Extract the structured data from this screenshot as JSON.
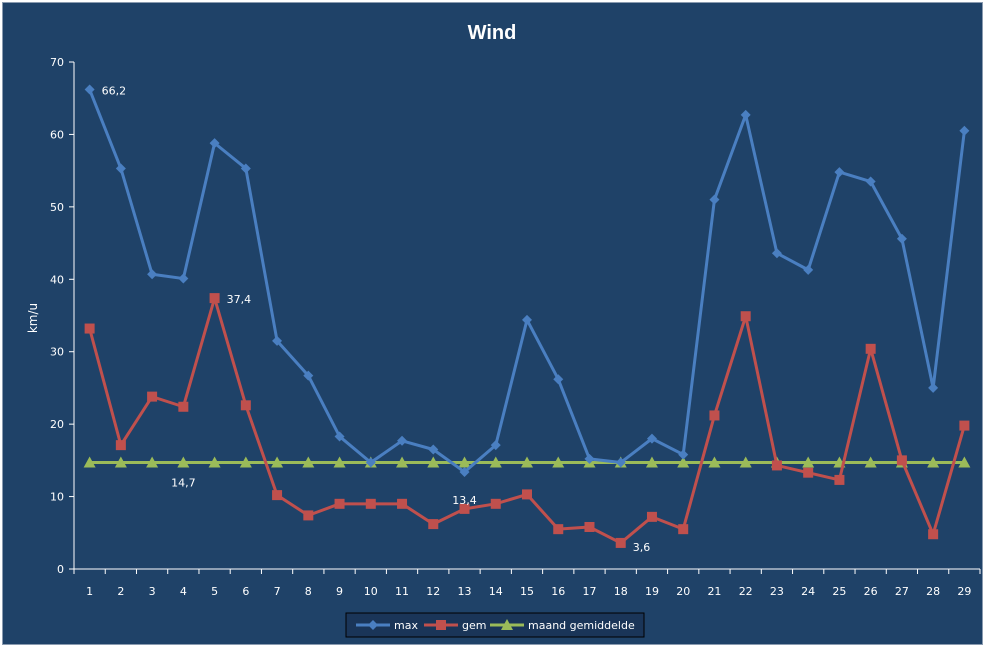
{
  "chart_data": {
    "type": "line",
    "title": "Wind",
    "xlabel": "",
    "ylabel": "km/u",
    "ylim": [
      0,
      70
    ],
    "yticks": [
      0,
      10,
      20,
      30,
      40,
      50,
      60,
      70
    ],
    "grid": false,
    "legend_position": "bottom",
    "x": [
      1,
      2,
      3,
      4,
      5,
      6,
      7,
      8,
      9,
      10,
      11,
      12,
      13,
      14,
      15,
      16,
      17,
      18,
      19,
      20,
      21,
      22,
      23,
      24,
      25,
      26,
      27,
      28,
      29
    ],
    "series": [
      {
        "name": "max",
        "color": "#4a7fc1",
        "marker": "diamond",
        "values": [
          66.2,
          55.3,
          40.7,
          40.1,
          58.8,
          55.3,
          31.5,
          26.7,
          18.3,
          14.7,
          17.7,
          16.5,
          13.4,
          17.1,
          34.4,
          26.2,
          15.2,
          14.7,
          18.0,
          15.8,
          51.0,
          62.7,
          43.6,
          41.3,
          54.8,
          53.5,
          45.6,
          25.0,
          60.5
        ]
      },
      {
        "name": "gem",
        "color": "#c0504d",
        "marker": "square",
        "values": [
          33.2,
          17.1,
          23.8,
          22.4,
          37.4,
          22.6,
          10.2,
          7.4,
          9.0,
          9.0,
          9.0,
          6.2,
          8.3,
          9.0,
          10.3,
          5.5,
          5.8,
          3.6,
          7.2,
          5.5,
          21.2,
          34.9,
          14.3,
          13.3,
          12.3,
          30.4,
          15.0,
          4.8,
          19.8
        ]
      },
      {
        "name": "maand gemiddelde",
        "color": "#9bbb59",
        "marker": "triangle",
        "values": [
          14.7,
          14.7,
          14.7,
          14.7,
          14.7,
          14.7,
          14.7,
          14.7,
          14.7,
          14.7,
          14.7,
          14.7,
          14.7,
          14.7,
          14.7,
          14.7,
          14.7,
          14.7,
          14.7,
          14.7,
          14.7,
          14.7,
          14.7,
          14.7,
          14.7,
          14.7,
          14.7,
          14.7,
          14.7
        ]
      }
    ],
    "annotations": [
      {
        "text": "66,2",
        "series": 0,
        "x": 1
      },
      {
        "text": "37,4",
        "series": 1,
        "x": 5
      },
      {
        "text": "14,7",
        "series": 2,
        "x": 4
      },
      {
        "text": "13,4",
        "series": 0,
        "x": 13
      },
      {
        "text": "3,6",
        "series": 1,
        "x": 18
      }
    ]
  }
}
